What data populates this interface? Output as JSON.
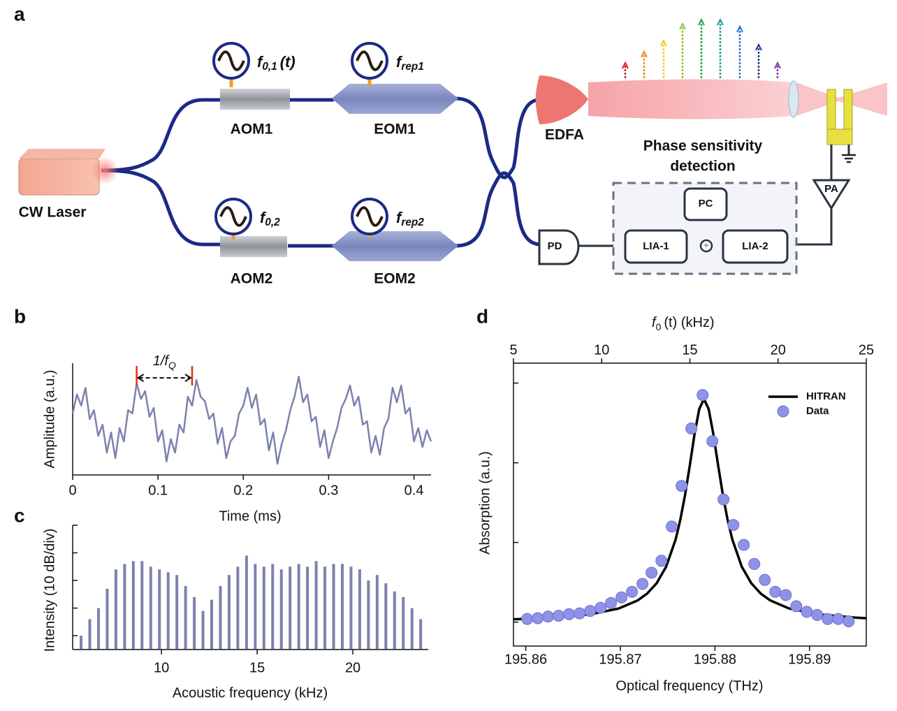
{
  "panel_labels": {
    "a": "a",
    "b": "b",
    "c": "c",
    "d": "d"
  },
  "diagram": {
    "laser": "CW Laser",
    "aom1": "AOM1",
    "eom1": "EOM1",
    "aom2": "AOM2",
    "eom2": "EOM2",
    "edfa": "EDFA",
    "detection_title": [
      "Phase sensitivity",
      "detection"
    ],
    "pd": "PD",
    "lia1": "LIA-1",
    "lia2": "LIA-2",
    "pc": "PC",
    "pa": "PA",
    "f01": {
      "symbol": "f",
      "sub": "0,1",
      "suffix": "(t)"
    },
    "frep1": {
      "symbol": "f",
      "sub": "rep1"
    },
    "f02": {
      "symbol": "f",
      "sub": "0,2"
    },
    "frep2": {
      "symbol": "f",
      "sub": "rep2"
    }
  },
  "chart_data": [
    {
      "type": "line",
      "xlabel": "Time (ms)",
      "ylabel": "Amplitude (a.u.)",
      "color": "#7b82ad",
      "x": [
        0,
        0.005,
        0.01,
        0.015,
        0.02,
        0.025,
        0.03,
        0.035,
        0.04,
        0.045,
        0.05,
        0.055,
        0.06,
        0.065,
        0.07,
        0.075,
        0.08,
        0.085,
        0.09,
        0.095,
        0.1,
        0.105,
        0.11,
        0.115,
        0.12,
        0.125,
        0.13,
        0.135,
        0.14,
        0.145,
        0.15,
        0.155,
        0.16,
        0.165,
        0.17,
        0.175,
        0.18,
        0.185,
        0.19,
        0.195,
        0.2,
        0.205,
        0.21,
        0.215,
        0.22,
        0.225,
        0.23,
        0.235,
        0.24,
        0.245,
        0.25,
        0.255,
        0.26,
        0.265,
        0.27,
        0.275,
        0.28,
        0.285,
        0.29,
        0.295,
        0.3,
        0.305,
        0.31,
        0.315,
        0.32,
        0.325,
        0.33,
        0.335,
        0.34,
        0.345,
        0.35,
        0.355,
        0.36,
        0.365,
        0.37,
        0.375,
        0.38,
        0.385,
        0.39,
        0.395,
        0.4,
        0.405,
        0.41,
        0.415,
        0.42
      ],
      "values": [
        0.55,
        0.72,
        0.62,
        0.78,
        0.5,
        0.58,
        0.35,
        0.45,
        0.2,
        0.38,
        0.15,
        0.42,
        0.3,
        0.58,
        0.55,
        0.82,
        0.68,
        0.75,
        0.52,
        0.6,
        0.3,
        0.4,
        0.12,
        0.32,
        0.2,
        0.45,
        0.38,
        0.7,
        0.62,
        0.85,
        0.7,
        0.66,
        0.5,
        0.55,
        0.28,
        0.42,
        0.15,
        0.3,
        0.35,
        0.55,
        0.62,
        0.78,
        0.6,
        0.72,
        0.45,
        0.5,
        0.22,
        0.38,
        0.1,
        0.28,
        0.4,
        0.58,
        0.7,
        0.88,
        0.65,
        0.72,
        0.48,
        0.52,
        0.25,
        0.4,
        0.15,
        0.3,
        0.42,
        0.6,
        0.68,
        0.8,
        0.62,
        0.7,
        0.45,
        0.48,
        0.2,
        0.35,
        0.18,
        0.42,
        0.5,
        0.78,
        0.65,
        0.8,
        0.55,
        0.6,
        0.3,
        0.42,
        0.25,
        0.4,
        0.3
      ],
      "xlim": [
        0,
        0.42
      ],
      "ylim": [
        0,
        1
      ],
      "xticks": [
        0,
        0.1,
        0.2,
        0.3,
        0.4
      ],
      "annotation": {
        "text": "1/f",
        "sub": "Q",
        "x": [
          0.075,
          0.14
        ],
        "color": "#e03020"
      }
    },
    {
      "type": "stem",
      "xlabel": "Acoustic frequency (kHz)",
      "ylabel": "Intensity (10 dB/div)",
      "color": "#7b82ad",
      "x": [
        5.8,
        6.255,
        6.71,
        7.165,
        7.62,
        8.075,
        8.53,
        8.985,
        9.44,
        9.895,
        10.35,
        10.805,
        11.26,
        11.715,
        12.17,
        12.625,
        13.08,
        13.535,
        13.99,
        14.445,
        14.9,
        15.355,
        15.81,
        16.265,
        16.72,
        17.175,
        17.63,
        18.085,
        18.54,
        18.995,
        19.45,
        19.905,
        20.36,
        20.815,
        21.27,
        21.725,
        22.18,
        22.635,
        23.09,
        23.545
      ],
      "values": [
        0,
        6,
        10,
        17,
        24,
        26,
        27,
        27,
        25,
        24,
        23,
        22,
        18,
        14,
        9,
        13,
        18,
        22,
        25,
        29,
        26,
        25,
        26,
        24,
        25,
        26,
        25,
        27,
        25,
        26,
        26,
        25,
        24,
        20,
        22,
        19,
        16,
        14,
        10,
        6
      ],
      "xlim": [
        5.36,
        23.94
      ],
      "ylim": [
        -5,
        40
      ],
      "xticks": [
        10,
        15,
        20
      ],
      "ytick_marks": [
        0,
        10,
        20,
        30,
        40
      ]
    },
    {
      "type": "combo",
      "xlabel": "Optical frequency (THz)",
      "ylabel": "Absorption (a.u.)",
      "x2label": {
        "symbol": "f",
        "sub": "0",
        "suffix": "(t) (kHz)"
      },
      "xlim": [
        195.8587,
        195.896
      ],
      "x2lim": [
        5,
        25
      ],
      "ylim": [
        -0.3,
        3.25
      ],
      "xticks": [
        195.86,
        195.87,
        195.88,
        195.89
      ],
      "x2ticks": [
        5,
        10,
        15,
        20,
        25
      ],
      "ytick_marks": [
        0,
        1,
        2,
        3
      ],
      "legend": "upper right",
      "series": [
        {
          "name": "HITRAN",
          "kind": "line",
          "color": "#000000",
          "x": [
            195.85874,
            195.86284,
            195.86684,
            195.86984,
            195.87184,
            195.87284,
            195.87384,
            195.87484,
            195.87584,
            195.87634,
            195.87684,
            195.87734,
            195.87784,
            195.87834,
            195.87884,
            195.87934,
            195.87984,
            195.88034,
            195.88084,
            195.88134,
            195.88184,
            195.88284,
            195.88384,
            195.88484,
            195.88584,
            195.88784,
            195.89084,
            195.89484,
            195.89604
          ],
          "values": [
            0.036,
            0.057,
            0.099,
            0.172,
            0.273,
            0.359,
            0.489,
            0.696,
            1.037,
            1.284,
            1.595,
            1.965,
            2.355,
            2.674,
            2.8,
            2.674,
            2.355,
            1.965,
            1.595,
            1.284,
            1.037,
            0.696,
            0.489,
            0.359,
            0.273,
            0.172,
            0.099,
            0.057,
            0.049
          ]
        },
        {
          "name": "Data",
          "kind": "scatter",
          "color": "#8f93e8",
          "x": [
            195.86015,
            195.86126,
            195.86236,
            195.86347,
            195.86458,
            195.86569,
            195.8668,
            195.86791,
            195.86901,
            195.87012,
            195.87123,
            195.87234,
            195.8733,
            195.87434,
            195.87544,
            195.87648,
            195.87751,
            195.8787,
            195.87973,
            195.88091,
            195.88195,
            195.88305,
            195.88416,
            195.88527,
            195.88638,
            195.88749,
            195.8886,
            195.88971,
            195.89081,
            195.89192,
            195.89303,
            195.89414
          ],
          "values": [
            0.04,
            0.05,
            0.07,
            0.08,
            0.1,
            0.11,
            0.14,
            0.18,
            0.24,
            0.31,
            0.38,
            0.48,
            0.62,
            0.77,
            1.2,
            1.71,
            2.43,
            2.85,
            2.27,
            1.54,
            1.22,
            0.97,
            0.73,
            0.53,
            0.38,
            0.34,
            0.2,
            0.13,
            0.09,
            0.04,
            0.04,
            0.01
          ]
        }
      ]
    }
  ]
}
